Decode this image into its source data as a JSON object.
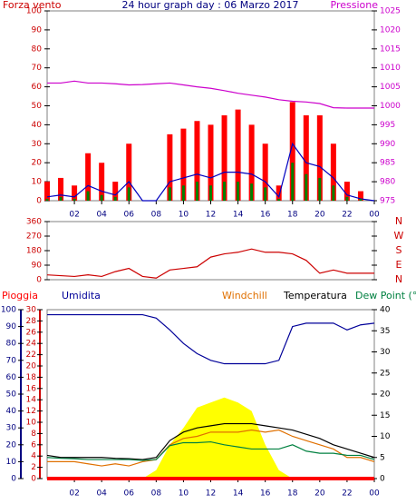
{
  "chart_data": [
    {
      "type": "bar",
      "title": "24 hour graph day : 06 Marzo 2017",
      "ylabel": "Forza vento",
      "y2label": "Pressione",
      "x": [
        0,
        1,
        2,
        3,
        4,
        5,
        6,
        7,
        8,
        9,
        10,
        11,
        12,
        13,
        14,
        15,
        16,
        17,
        18,
        19,
        20,
        21,
        22,
        23,
        24
      ],
      "xlim": [
        0,
        24
      ],
      "xticks": [
        {
          "value": 2,
          "label": "02"
        },
        {
          "value": 4,
          "label": "04"
        },
        {
          "value": 6,
          "label": "06"
        },
        {
          "value": 8,
          "label": "08"
        },
        10,
        12,
        14,
        16,
        18,
        20,
        22,
        {
          "value": 24,
          "label": "00"
        }
      ],
      "ylim": [
        0,
        100
      ],
      "yticks": [
        0,
        10,
        20,
        30,
        40,
        50,
        60,
        70,
        80,
        90,
        100
      ],
      "y2lim": [
        975,
        1025
      ],
      "y2ticks": [
        975,
        980,
        985,
        990,
        995,
        1000,
        1005,
        1010,
        1015,
        1020,
        1025
      ],
      "series": [
        {
          "type": "bar",
          "color": "#ff0000",
          "values": [
            10,
            12,
            8,
            25,
            20,
            10,
            30,
            0,
            0,
            35,
            38,
            42,
            40,
            45,
            48,
            40,
            30,
            8,
            52,
            45,
            45,
            30,
            10,
            5,
            0
          ]
        },
        {
          "type": "line",
          "color": "#0000c0",
          "values": [
            2,
            3,
            2,
            8,
            5,
            3,
            10,
            0,
            0,
            10,
            12,
            14,
            12,
            15,
            15,
            14,
            10,
            2,
            30,
            20,
            18,
            12,
            3,
            1,
            0
          ]
        },
        {
          "type": "bar",
          "color": "#008000",
          "values": [
            1,
            2,
            1,
            5,
            3,
            2,
            7,
            0,
            0,
            7,
            8,
            10,
            8,
            10,
            10,
            9,
            7,
            1,
            20,
            14,
            12,
            8,
            2,
            1,
            0
          ]
        },
        {
          "type": "line",
          "axis": "y2",
          "color": "#cc00cc",
          "values": [
            1006,
            1006,
            1006.5,
            1006,
            1006,
            1005.8,
            1005.5,
            1005.6,
            1005.8,
            1006,
            1005.5,
            1005,
            1004.6,
            1004,
            1003.3,
            1002.8,
            1002.3,
            1001.6,
            1001.2,
            1001,
            1000.6,
            999.5,
            999.4,
            999.4,
            999.4
          ]
        }
      ]
    },
    {
      "type": "line",
      "x": [
        0,
        1,
        2,
        3,
        4,
        5,
        6,
        7,
        8,
        9,
        10,
        11,
        12,
        13,
        14,
        15,
        16,
        17,
        18,
        19,
        20,
        21,
        22,
        23,
        24
      ],
      "xlim": [
        0,
        24
      ],
      "ylim": [
        0,
        360
      ],
      "yticks": [
        0,
        90,
        180,
        270,
        360
      ],
      "y2lim": [
        0,
        360
      ],
      "y2ticks": [
        {
          "value": 360,
          "label": "N"
        },
        {
          "value": 270,
          "label": "W"
        },
        {
          "value": 180,
          "label": "S"
        },
        {
          "value": 90,
          "label": "E"
        },
        {
          "value": 0,
          "label": "N"
        }
      ],
      "series": [
        {
          "type": "line",
          "color": "#cc0000",
          "values": [
            30,
            25,
            20,
            30,
            20,
            50,
            70,
            20,
            10,
            60,
            70,
            80,
            140,
            160,
            170,
            190,
            170,
            170,
            160,
            120,
            40,
            60,
            40,
            40,
            40
          ]
        }
      ]
    },
    {
      "type": "line",
      "x": [
        0,
        1,
        2,
        3,
        4,
        5,
        6,
        7,
        8,
        9,
        10,
        11,
        12,
        13,
        14,
        15,
        16,
        17,
        18,
        19,
        20,
        21,
        22,
        23,
        24
      ],
      "xlim": [
        0,
        24
      ],
      "xticks": [
        {
          "value": 2,
          "label": "02"
        },
        {
          "value": 4,
          "label": "04"
        },
        {
          "value": 6,
          "label": "06"
        },
        {
          "value": 8,
          "label": "08"
        },
        10,
        12,
        14,
        16,
        18,
        20,
        22,
        {
          "value": 24,
          "label": "00"
        }
      ],
      "ylim": [
        0,
        100
      ],
      "yticks": [
        0,
        10,
        20,
        30,
        40,
        50,
        60,
        70,
        80,
        90,
        100
      ],
      "y3lim": [
        0,
        30
      ],
      "y3ticks": [
        0,
        2,
        4,
        6,
        8,
        10,
        12,
        14,
        16,
        18,
        20,
        22,
        24,
        26,
        28,
        30
      ],
      "y2lim": [
        0,
        40
      ],
      "y2ticks": [
        0,
        5,
        10,
        15,
        20,
        25,
        30,
        35,
        40
      ],
      "series": [
        {
          "name": "Pioggia",
          "type": "line",
          "axis": "y3",
          "color": "#ff0000",
          "values": [
            0,
            0,
            0,
            0,
            0,
            0,
            0,
            0,
            0,
            0,
            0,
            0,
            0,
            0,
            0,
            0,
            0,
            0,
            0,
            0,
            0,
            0,
            0,
            0,
            0
          ]
        },
        {
          "name": "Umidita",
          "type": "line",
          "color": "#000099",
          "values": [
            97,
            97,
            97,
            97,
            97,
            97,
            97,
            97,
            95,
            88,
            80,
            74,
            70,
            68,
            68,
            68,
            68,
            70,
            90,
            92,
            92,
            92,
            88,
            91,
            92
          ]
        },
        {
          "name": "Windchill",
          "type": "line",
          "axis": "y2",
          "color": "#e07000",
          "values": [
            4,
            4,
            4,
            3.5,
            3,
            3.5,
            3,
            4,
            4.5,
            8,
            9.5,
            10,
            11,
            11,
            11,
            11.5,
            11,
            11.5,
            10,
            9,
            8,
            7,
            5,
            5,
            4
          ]
        },
        {
          "name": "Temperatura",
          "type": "line",
          "axis": "y2",
          "color": "#000000",
          "values": [
            5.5,
            5,
            5,
            5,
            5,
            4.8,
            4.7,
            4.5,
            5,
            9,
            11,
            12,
            12.5,
            13,
            13,
            13,
            12.5,
            12,
            11.5,
            10.5,
            9.5,
            8,
            7,
            6,
            5
          ]
        },
        {
          "name": "Dew Point (°C",
          "type": "line",
          "axis": "y2",
          "color": "#008040",
          "values": [
            5,
            4.8,
            4.7,
            4.5,
            4.5,
            4.5,
            4.5,
            4.3,
            4.5,
            7.8,
            8.5,
            8.5,
            8.7,
            8,
            7.5,
            7,
            7,
            7,
            8,
            6.5,
            6,
            6,
            5.5,
            5.5,
            4.5
          ]
        },
        {
          "type": "area",
          "color": "#ffff00",
          "values": [
            0,
            0,
            0,
            0,
            0,
            0,
            0,
            0,
            5,
            20,
            30,
            42,
            45,
            48,
            45,
            40,
            20,
            5,
            0,
            0,
            0,
            0,
            0,
            0,
            0
          ]
        }
      ]
    }
  ]
}
